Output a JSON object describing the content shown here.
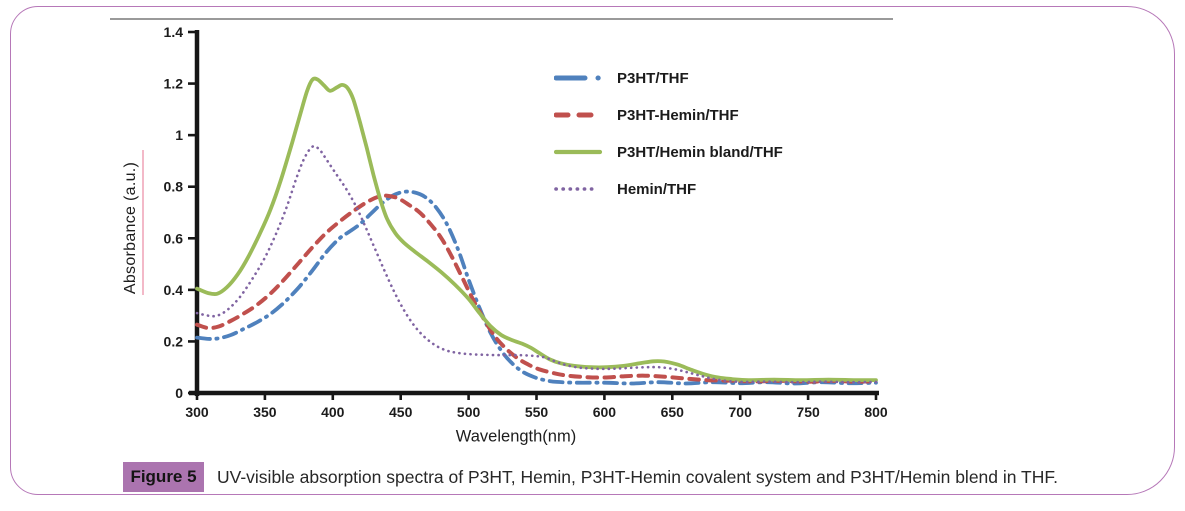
{
  "figure": {
    "label": "Figure 5",
    "caption": "UV-visible absorption spectra of P3HT, Hemin, P3HT-Hemin covalent system and P3HT/Hemin blend in THF.",
    "badge_color": "#ab74af",
    "frame_border_color": "#b678b8",
    "separator_color": "#9a9a9a"
  },
  "chart_data": {
    "type": "line",
    "title": "",
    "xlabel": "Wavelength(nm)",
    "ylabel": "Absorbance (a.u.)",
    "xlim": [
      300,
      800
    ],
    "ylim": [
      0,
      1.4
    ],
    "xticks": [
      300,
      350,
      400,
      450,
      500,
      550,
      600,
      650,
      700,
      750,
      800
    ],
    "ytick_values": [
      0,
      0.2,
      0.4,
      0.6,
      0.8,
      1,
      1.2,
      1.4
    ],
    "ytick_labels": [
      "0",
      "0.2",
      "0.4",
      "0.6",
      "0.8",
      "1",
      "1.2",
      "1.4"
    ],
    "grid": false,
    "legend_position": "inside upper right",
    "axis_color": "#161616",
    "series": [
      {
        "name": "P3HT/THF",
        "color": "#4f81bd",
        "style": "dash-dot",
        "points": [
          [
            300,
            0.215
          ],
          [
            308,
            0.21
          ],
          [
            316,
            0.212
          ],
          [
            325,
            0.225
          ],
          [
            335,
            0.25
          ],
          [
            345,
            0.277
          ],
          [
            355,
            0.31
          ],
          [
            365,
            0.355
          ],
          [
            375,
            0.41
          ],
          [
            385,
            0.475
          ],
          [
            395,
            0.545
          ],
          [
            405,
            0.6
          ],
          [
            412,
            0.625
          ],
          [
            420,
            0.655
          ],
          [
            428,
            0.695
          ],
          [
            436,
            0.735
          ],
          [
            444,
            0.765
          ],
          [
            452,
            0.78
          ],
          [
            460,
            0.778
          ],
          [
            468,
            0.76
          ],
          [
            476,
            0.72
          ],
          [
            484,
            0.655
          ],
          [
            492,
            0.56
          ],
          [
            500,
            0.44
          ],
          [
            508,
            0.33
          ],
          [
            516,
            0.235
          ],
          [
            524,
            0.165
          ],
          [
            532,
            0.115
          ],
          [
            540,
            0.082
          ],
          [
            548,
            0.062
          ],
          [
            556,
            0.05
          ],
          [
            565,
            0.043
          ],
          [
            580,
            0.04
          ],
          [
            600,
            0.04
          ],
          [
            620,
            0.037
          ],
          [
            640,
            0.042
          ],
          [
            660,
            0.037
          ],
          [
            680,
            0.042
          ],
          [
            700,
            0.038
          ],
          [
            720,
            0.042
          ],
          [
            740,
            0.037
          ],
          [
            760,
            0.042
          ],
          [
            780,
            0.038
          ],
          [
            800,
            0.04
          ]
        ]
      },
      {
        "name": "P3HT-Hemin/THF",
        "color": "#c0504d",
        "style": "dashed",
        "points": [
          [
            300,
            0.265
          ],
          [
            308,
            0.252
          ],
          [
            316,
            0.258
          ],
          [
            325,
            0.28
          ],
          [
            335,
            0.31
          ],
          [
            345,
            0.345
          ],
          [
            355,
            0.39
          ],
          [
            365,
            0.445
          ],
          [
            375,
            0.505
          ],
          [
            385,
            0.565
          ],
          [
            395,
            0.62
          ],
          [
            405,
            0.665
          ],
          [
            415,
            0.705
          ],
          [
            425,
            0.74
          ],
          [
            433,
            0.76
          ],
          [
            440,
            0.765
          ],
          [
            448,
            0.755
          ],
          [
            456,
            0.73
          ],
          [
            464,
            0.7
          ],
          [
            472,
            0.655
          ],
          [
            480,
            0.6
          ],
          [
            488,
            0.525
          ],
          [
            496,
            0.44
          ],
          [
            504,
            0.355
          ],
          [
            512,
            0.28
          ],
          [
            520,
            0.215
          ],
          [
            528,
            0.17
          ],
          [
            536,
            0.135
          ],
          [
            544,
            0.11
          ],
          [
            552,
            0.092
          ],
          [
            562,
            0.078
          ],
          [
            572,
            0.068
          ],
          [
            585,
            0.062
          ],
          [
            600,
            0.06
          ],
          [
            615,
            0.065
          ],
          [
            630,
            0.067
          ],
          [
            645,
            0.063
          ],
          [
            660,
            0.056
          ],
          [
            675,
            0.05
          ],
          [
            690,
            0.048
          ],
          [
            710,
            0.045
          ],
          [
            730,
            0.047
          ],
          [
            750,
            0.044
          ],
          [
            770,
            0.047
          ],
          [
            785,
            0.044
          ],
          [
            800,
            0.046
          ]
        ]
      },
      {
        "name": "P3HT/Hemin bland/THF",
        "color": "#9bbb59",
        "style": "solid",
        "points": [
          [
            300,
            0.405
          ],
          [
            308,
            0.388
          ],
          [
            315,
            0.385
          ],
          [
            322,
            0.41
          ],
          [
            330,
            0.46
          ],
          [
            338,
            0.53
          ],
          [
            346,
            0.615
          ],
          [
            354,
            0.71
          ],
          [
            362,
            0.83
          ],
          [
            370,
            0.97
          ],
          [
            376,
            1.08
          ],
          [
            381,
            1.17
          ],
          [
            385,
            1.215
          ],
          [
            389,
            1.215
          ],
          [
            394,
            1.19
          ],
          [
            398,
            1.172
          ],
          [
            403,
            1.185
          ],
          [
            407,
            1.195
          ],
          [
            411,
            1.182
          ],
          [
            415,
            1.14
          ],
          [
            420,
            1.05
          ],
          [
            425,
            0.95
          ],
          [
            430,
            0.845
          ],
          [
            435,
            0.75
          ],
          [
            440,
            0.675
          ],
          [
            446,
            0.62
          ],
          [
            452,
            0.585
          ],
          [
            460,
            0.55
          ],
          [
            470,
            0.51
          ],
          [
            480,
            0.468
          ],
          [
            490,
            0.42
          ],
          [
            500,
            0.365
          ],
          [
            508,
            0.31
          ],
          [
            516,
            0.26
          ],
          [
            524,
            0.225
          ],
          [
            532,
            0.205
          ],
          [
            540,
            0.19
          ],
          [
            546,
            0.175
          ],
          [
            552,
            0.155
          ],
          [
            560,
            0.13
          ],
          [
            568,
            0.115
          ],
          [
            578,
            0.105
          ],
          [
            590,
            0.1
          ],
          [
            602,
            0.1
          ],
          [
            614,
            0.105
          ],
          [
            626,
            0.115
          ],
          [
            636,
            0.123
          ],
          [
            644,
            0.122
          ],
          [
            654,
            0.11
          ],
          [
            664,
            0.09
          ],
          [
            674,
            0.072
          ],
          [
            684,
            0.06
          ],
          [
            694,
            0.054
          ],
          [
            706,
            0.05
          ],
          [
            725,
            0.052
          ],
          [
            745,
            0.05
          ],
          [
            765,
            0.052
          ],
          [
            785,
            0.05
          ],
          [
            800,
            0.05
          ]
        ]
      },
      {
        "name": "Hemin/THF",
        "color": "#8064a2",
        "style": "dotted",
        "points": [
          [
            300,
            0.31
          ],
          [
            308,
            0.3
          ],
          [
            315,
            0.3
          ],
          [
            323,
            0.325
          ],
          [
            332,
            0.375
          ],
          [
            341,
            0.445
          ],
          [
            350,
            0.525
          ],
          [
            358,
            0.615
          ],
          [
            366,
            0.72
          ],
          [
            373,
            0.83
          ],
          [
            379,
            0.91
          ],
          [
            385,
            0.955
          ],
          [
            390,
            0.945
          ],
          [
            396,
            0.9
          ],
          [
            403,
            0.845
          ],
          [
            410,
            0.79
          ],
          [
            417,
            0.725
          ],
          [
            424,
            0.645
          ],
          [
            431,
            0.56
          ],
          [
            438,
            0.475
          ],
          [
            445,
            0.395
          ],
          [
            452,
            0.325
          ],
          [
            459,
            0.268
          ],
          [
            466,
            0.225
          ],
          [
            474,
            0.19
          ],
          [
            482,
            0.168
          ],
          [
            490,
            0.157
          ],
          [
            500,
            0.151
          ],
          [
            512,
            0.148
          ],
          [
            524,
            0.147
          ],
          [
            536,
            0.147
          ],
          [
            548,
            0.144
          ],
          [
            556,
            0.138
          ],
          [
            564,
            0.122
          ],
          [
            572,
            0.108
          ],
          [
            582,
            0.098
          ],
          [
            594,
            0.094
          ],
          [
            606,
            0.094
          ],
          [
            618,
            0.097
          ],
          [
            630,
            0.1
          ],
          [
            640,
            0.1
          ],
          [
            650,
            0.094
          ],
          [
            660,
            0.082
          ],
          [
            670,
            0.068
          ],
          [
            680,
            0.055
          ],
          [
            690,
            0.047
          ],
          [
            702,
            0.043
          ],
          [
            720,
            0.044
          ],
          [
            740,
            0.042
          ],
          [
            760,
            0.044
          ],
          [
            780,
            0.042
          ],
          [
            800,
            0.043
          ]
        ]
      }
    ]
  }
}
